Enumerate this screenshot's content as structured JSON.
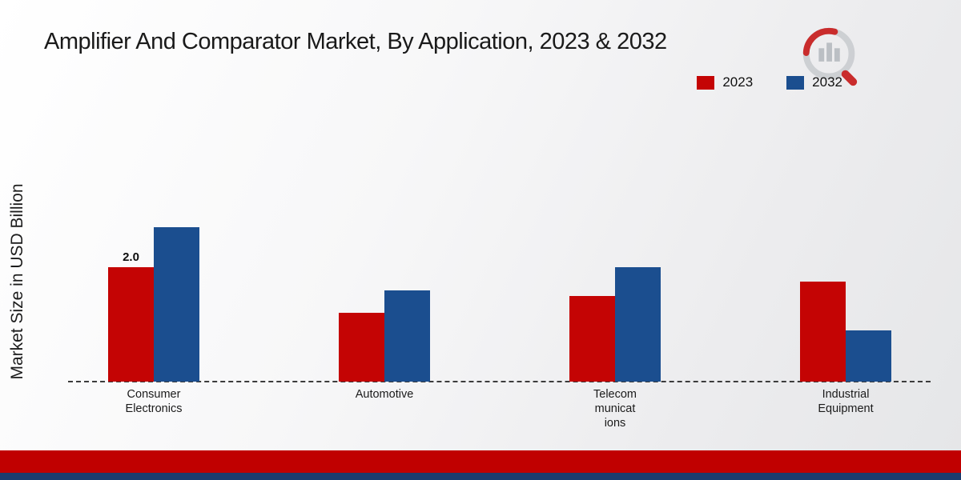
{
  "page": {
    "title": "Amplifier And Comparator Market, By Application, 2023 & 2032"
  },
  "chart_data": {
    "type": "bar",
    "title": "Amplifier And Comparator Market, By Application, 2023 & 2032",
    "ylabel": "Market Size in USD Billion",
    "xlabel": "",
    "categories": [
      "Consumer Electronics",
      "Automotive",
      "Telecommunications",
      "Industrial Equipment"
    ],
    "category_label_lines": [
      [
        "Consumer",
        "Electronics"
      ],
      [
        "Automotive"
      ],
      [
        "Telecom",
        "municat",
        "ions"
      ],
      [
        "Industrial",
        "Equipment"
      ]
    ],
    "series": [
      {
        "name": "2023",
        "color": "#c40404",
        "values": [
          2.0,
          1.2,
          1.5,
          1.75
        ]
      },
      {
        "name": "2032",
        "color": "#1b4e8f",
        "values": [
          2.7,
          1.6,
          2.0,
          0.9
        ]
      }
    ],
    "value_labels": [
      {
        "series_index": 0,
        "category_index": 0,
        "text": "2.0"
      }
    ],
    "ylim": [
      0,
      3
    ],
    "grid": false,
    "legend_position": "top-right",
    "baseline_style": "dashed"
  },
  "footer": {
    "red_band_color": "#c00000",
    "navy_band_color": "#1c3c6e"
  },
  "logo": {
    "name": "market-research-future-logo"
  }
}
